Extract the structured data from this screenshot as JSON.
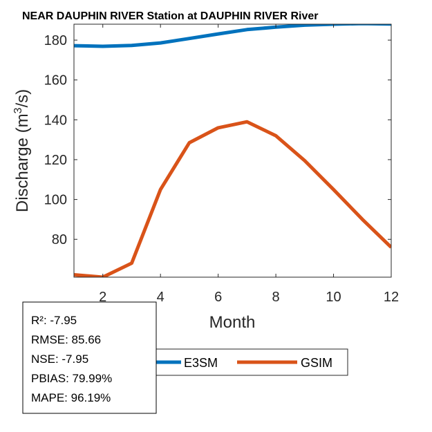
{
  "chart_data": {
    "type": "line",
    "title": "NEAR DAUPHIN RIVER  Station at  DAUPHIN RIVER  River",
    "xlabel": "Month",
    "ylabel": "Discharge (m^3/s)",
    "ylabel_parts": {
      "main": "Discharge (m",
      "sup": "3",
      "end": "/s)"
    },
    "xlim": [
      1,
      12
    ],
    "ylim": [
      61,
      188
    ],
    "xticks": [
      2,
      4,
      6,
      8,
      10,
      12
    ],
    "yticks": [
      80,
      100,
      120,
      140,
      160,
      180
    ],
    "x": [
      1,
      2,
      3,
      4,
      5,
      6,
      7,
      8,
      9,
      10,
      11,
      12
    ],
    "series": [
      {
        "name": "E3SM",
        "color": "#0072BD",
        "values": [
          177.2,
          176.9,
          177.3,
          178.6,
          180.8,
          183.1,
          185.3,
          186.5,
          187.5,
          188.0,
          188.3,
          188.1
        ]
      },
      {
        "name": "GSIM",
        "color": "#D95319",
        "values": [
          62.2,
          61.0,
          68.0,
          105.0,
          128.5,
          136.0,
          139.0,
          132.0,
          119.5,
          105.0,
          90.0,
          76.0
        ]
      }
    ],
    "stats": [
      "R²: -7.95",
      "RMSE: 85.66",
      "NSE: -7.95",
      "PBIAS: 79.99%",
      "MAPE: 96.19%"
    ],
    "legend_position": "bottom-center"
  }
}
